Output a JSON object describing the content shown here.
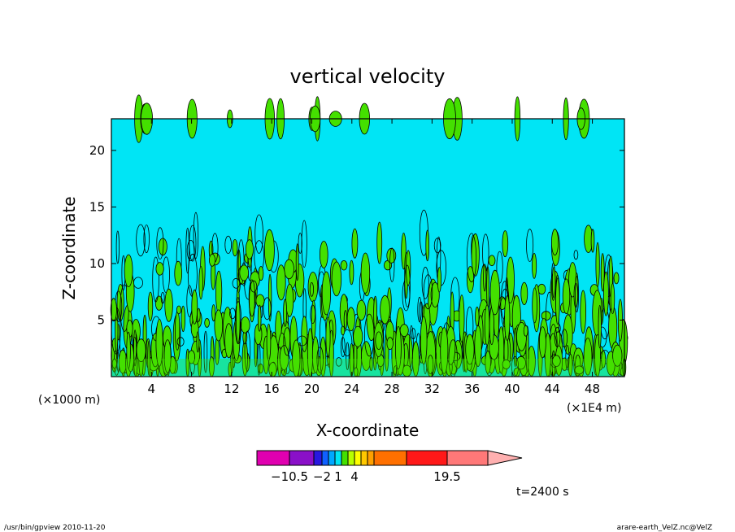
{
  "chart_data": {
    "type": "heatmap",
    "title": "vertical velocity",
    "xlabel": "X-coordinate",
    "ylabel": "Z-coordinate",
    "x_unit_left": "(×1000 m)",
    "x_unit_right": "(×1E4 m)",
    "xlim": [
      0,
      51.2
    ],
    "ylim": [
      0,
      22.8
    ],
    "xticks": [
      4,
      8,
      12,
      16,
      20,
      24,
      28,
      32,
      36,
      40,
      44,
      48
    ],
    "yticks": [
      5,
      10,
      15,
      20
    ],
    "xtick_labels": [
      "4",
      "8",
      "12",
      "16",
      "20",
      "24",
      "28",
      "32",
      "36",
      "40",
      "44",
      "48"
    ],
    "ytick_labels": [
      "5",
      "10",
      "15",
      "20"
    ],
    "background_level_color": "#00e5f5",
    "plume_color": "#44e000",
    "contour_line_color": "#000000",
    "colorbar": {
      "levels": [
        -10.5,
        -2,
        1,
        4,
        19.5
      ],
      "labels": [
        "−10.5",
        "−2",
        "1",
        "4",
        "19.5"
      ],
      "colors": [
        "#e000b0",
        "#8a10c8",
        "#2818e0",
        "#1060ff",
        "#00a8ff",
        "#00e5f5",
        "#44e000",
        "#b8ff00",
        "#ffff00",
        "#ffc800",
        "#ffa000",
        "#ff7000",
        "#ff1818",
        "#ff7878",
        "#ffb0b0"
      ]
    },
    "time_label": "t=2400 s"
  },
  "footer": {
    "left": "/usr/bin/gpview  2010-11-20",
    "right": "arare-earth_VelZ.nc@VelZ"
  }
}
